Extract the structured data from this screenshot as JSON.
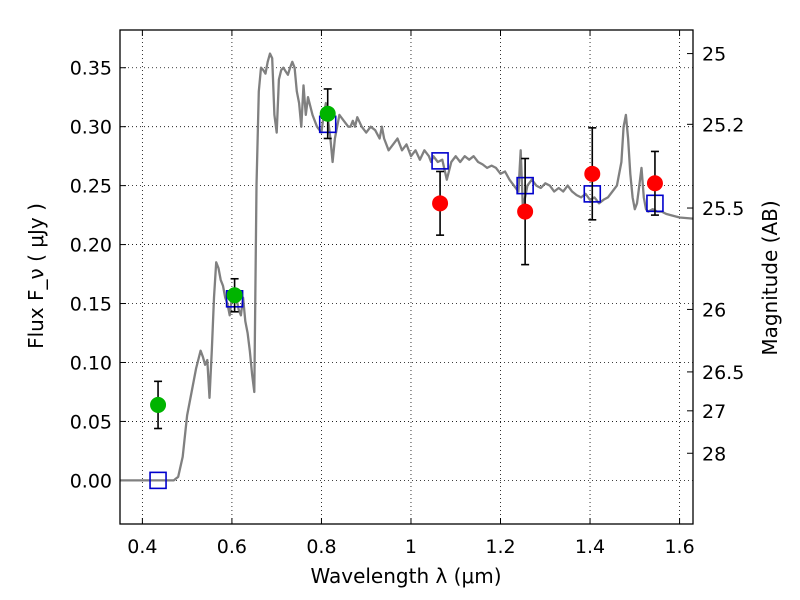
{
  "chart_data": {
    "type": "scatter",
    "xlabel": "Wavelength  λ (μm)",
    "ylabel": "Flux  F_ν  ( μJy )",
    "ylabel_right": "Magnitude (AB)",
    "xlim": [
      0.35,
      1.63
    ],
    "ylim": [
      -0.037,
      0.382
    ],
    "grid": true,
    "x_ticks": [
      0.4,
      0.6,
      0.8,
      1.0,
      1.2,
      1.4,
      1.6
    ],
    "x_tick_labels": [
      "0.4",
      "0.6",
      "0.8",
      "1",
      "1.2",
      "1.4",
      "1.6"
    ],
    "y_ticks": [
      0.0,
      0.05,
      0.1,
      0.15,
      0.2,
      0.25,
      0.3,
      0.35
    ],
    "y_tick_labels": [
      "0.00",
      "0.05",
      "0.10",
      "0.15",
      "0.20",
      "0.25",
      "0.30",
      "0.35"
    ],
    "right_ticks": [
      {
        "flux": 0.362,
        "label": "25"
      },
      {
        "flux": 0.302,
        "label": "25.2"
      },
      {
        "flux": 0.231,
        "label": "25.5"
      },
      {
        "flux": 0.145,
        "label": "26"
      },
      {
        "flux": 0.092,
        "label": "26.5"
      },
      {
        "flux": 0.059,
        "label": "27"
      },
      {
        "flux": 0.023,
        "label": "28"
      }
    ],
    "series": [
      {
        "kind": "model_spectrum",
        "color": "#808080",
        "x": [
          0.35,
          0.47,
          0.48,
          0.49,
          0.5,
          0.51,
          0.52,
          0.53,
          0.535,
          0.54,
          0.545,
          0.55,
          0.555,
          0.56,
          0.565,
          0.57,
          0.575,
          0.58,
          0.585,
          0.59,
          0.595,
          0.6,
          0.605,
          0.61,
          0.615,
          0.62,
          0.625,
          0.63,
          0.635,
          0.64,
          0.645,
          0.65,
          0.655,
          0.66,
          0.665,
          0.67,
          0.675,
          0.68,
          0.685,
          0.69,
          0.695,
          0.7,
          0.705,
          0.71,
          0.715,
          0.72,
          0.725,
          0.73,
          0.735,
          0.74,
          0.745,
          0.75,
          0.755,
          0.76,
          0.765,
          0.77,
          0.78,
          0.79,
          0.8,
          0.805,
          0.81,
          0.815,
          0.82,
          0.825,
          0.83,
          0.84,
          0.85,
          0.86,
          0.865,
          0.87,
          0.875,
          0.88,
          0.89,
          0.9,
          0.91,
          0.92,
          0.93,
          0.935,
          0.94,
          0.95,
          0.96,
          0.97,
          0.98,
          0.99,
          1.0,
          1.01,
          1.02,
          1.03,
          1.04,
          1.045,
          1.05,
          1.06,
          1.07,
          1.08,
          1.09,
          1.1,
          1.11,
          1.12,
          1.13,
          1.14,
          1.15,
          1.16,
          1.17,
          1.18,
          1.19,
          1.2,
          1.21,
          1.22,
          1.23,
          1.24,
          1.245,
          1.25,
          1.255,
          1.26,
          1.27,
          1.28,
          1.29,
          1.3,
          1.31,
          1.32,
          1.33,
          1.34,
          1.35,
          1.36,
          1.37,
          1.38,
          1.39,
          1.4,
          1.41,
          1.42,
          1.43,
          1.44,
          1.45,
          1.46,
          1.47,
          1.475,
          1.48,
          1.485,
          1.49,
          1.495,
          1.5,
          1.505,
          1.51,
          1.515,
          1.52,
          1.525,
          1.53,
          1.54,
          1.55,
          1.56,
          1.57,
          1.58,
          1.6,
          1.63
        ],
        "y": [
          0.0,
          0.0,
          0.003,
          0.02,
          0.055,
          0.075,
          0.095,
          0.11,
          0.105,
          0.098,
          0.102,
          0.07,
          0.11,
          0.155,
          0.185,
          0.18,
          0.17,
          0.165,
          0.155,
          0.15,
          0.14,
          0.155,
          0.16,
          0.155,
          0.145,
          0.14,
          0.155,
          0.135,
          0.125,
          0.11,
          0.09,
          0.075,
          0.25,
          0.33,
          0.35,
          0.348,
          0.345,
          0.355,
          0.362,
          0.358,
          0.31,
          0.295,
          0.34,
          0.348,
          0.35,
          0.347,
          0.344,
          0.35,
          0.355,
          0.35,
          0.33,
          0.32,
          0.3,
          0.335,
          0.31,
          0.325,
          0.31,
          0.3,
          0.295,
          0.31,
          0.32,
          0.305,
          0.29,
          0.27,
          0.29,
          0.31,
          0.305,
          0.3,
          0.3,
          0.305,
          0.3,
          0.308,
          0.3,
          0.295,
          0.3,
          0.297,
          0.29,
          0.3,
          0.29,
          0.28,
          0.285,
          0.29,
          0.28,
          0.285,
          0.275,
          0.28,
          0.272,
          0.28,
          0.275,
          0.27,
          0.275,
          0.27,
          0.272,
          0.255,
          0.27,
          0.275,
          0.27,
          0.275,
          0.272,
          0.275,
          0.27,
          0.268,
          0.265,
          0.267,
          0.265,
          0.26,
          0.262,
          0.255,
          0.25,
          0.245,
          0.28,
          0.23,
          0.24,
          0.25,
          0.255,
          0.25,
          0.248,
          0.252,
          0.25,
          0.245,
          0.248,
          0.245,
          0.25,
          0.245,
          0.242,
          0.24,
          0.243,
          0.238,
          0.24,
          0.235,
          0.238,
          0.24,
          0.245,
          0.25,
          0.27,
          0.3,
          0.31,
          0.29,
          0.26,
          0.24,
          0.23,
          0.235,
          0.25,
          0.265,
          0.24,
          0.23,
          0.228,
          0.23,
          0.228,
          0.228,
          0.226,
          0.225,
          0.223,
          0.222
        ]
      },
      {
        "kind": "model_photometry",
        "marker": "open-square",
        "color": "#0000cc",
        "points": [
          {
            "x": 0.435,
            "y": 0.0
          },
          {
            "x": 0.606,
            "y": 0.154
          },
          {
            "x": 0.814,
            "y": 0.302
          },
          {
            "x": 1.065,
            "y": 0.271
          },
          {
            "x": 1.255,
            "y": 0.25
          },
          {
            "x": 1.405,
            "y": 0.243
          },
          {
            "x": 1.545,
            "y": 0.235
          }
        ]
      },
      {
        "kind": "observed_optical",
        "marker": "filled-circle",
        "color": "#00b400",
        "points": [
          {
            "x": 0.435,
            "y": 0.064,
            "err": 0.02
          },
          {
            "x": 0.606,
            "y": 0.157,
            "err": 0.014
          },
          {
            "x": 0.814,
            "y": 0.311,
            "err": 0.021
          }
        ]
      },
      {
        "kind": "observed_infrared",
        "marker": "filled-circle",
        "color": "#ff0000",
        "points": [
          {
            "x": 1.065,
            "y": 0.235,
            "err": 0.027
          },
          {
            "x": 1.255,
            "y": 0.228,
            "err": 0.045
          },
          {
            "x": 1.405,
            "y": 0.26,
            "err": 0.039
          },
          {
            "x": 1.545,
            "y": 0.252,
            "err": 0.027
          }
        ]
      }
    ]
  }
}
